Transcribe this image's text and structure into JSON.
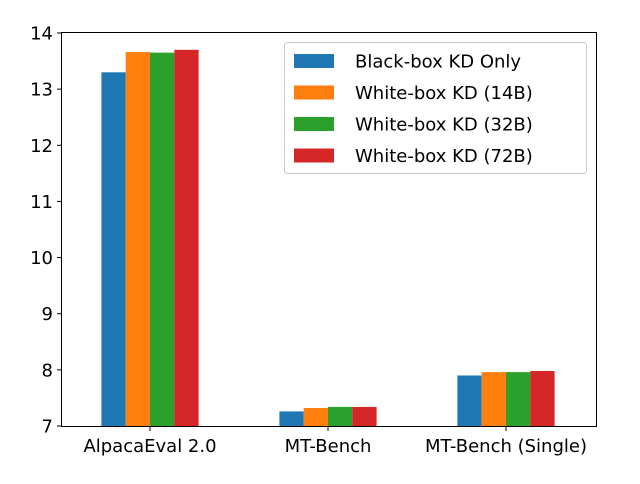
{
  "chart_data": {
    "type": "bar",
    "categories": [
      "AlpacaEval 2.0",
      "MT-Bench",
      "MT-Bench (Single)"
    ],
    "series": [
      {
        "name": "Black-box KD Only",
        "color": "#1f77b4",
        "values": [
          13.3,
          7.26,
          7.9
        ]
      },
      {
        "name": "White-box KD (14B)",
        "color": "#ff7f0e",
        "values": [
          13.66,
          7.32,
          7.96
        ]
      },
      {
        "name": "White-box KD (32B)",
        "color": "#2ca02c",
        "values": [
          13.65,
          7.34,
          7.96
        ]
      },
      {
        "name": "White-box KD (72B)",
        "color": "#d62728",
        "values": [
          13.7,
          7.34,
          7.98
        ]
      }
    ],
    "ylim": [
      7,
      14
    ],
    "yticks": [
      "7",
      "8",
      "9",
      "10",
      "11",
      "12",
      "13",
      "14"
    ],
    "grid": false,
    "legend_position": "top-right"
  }
}
